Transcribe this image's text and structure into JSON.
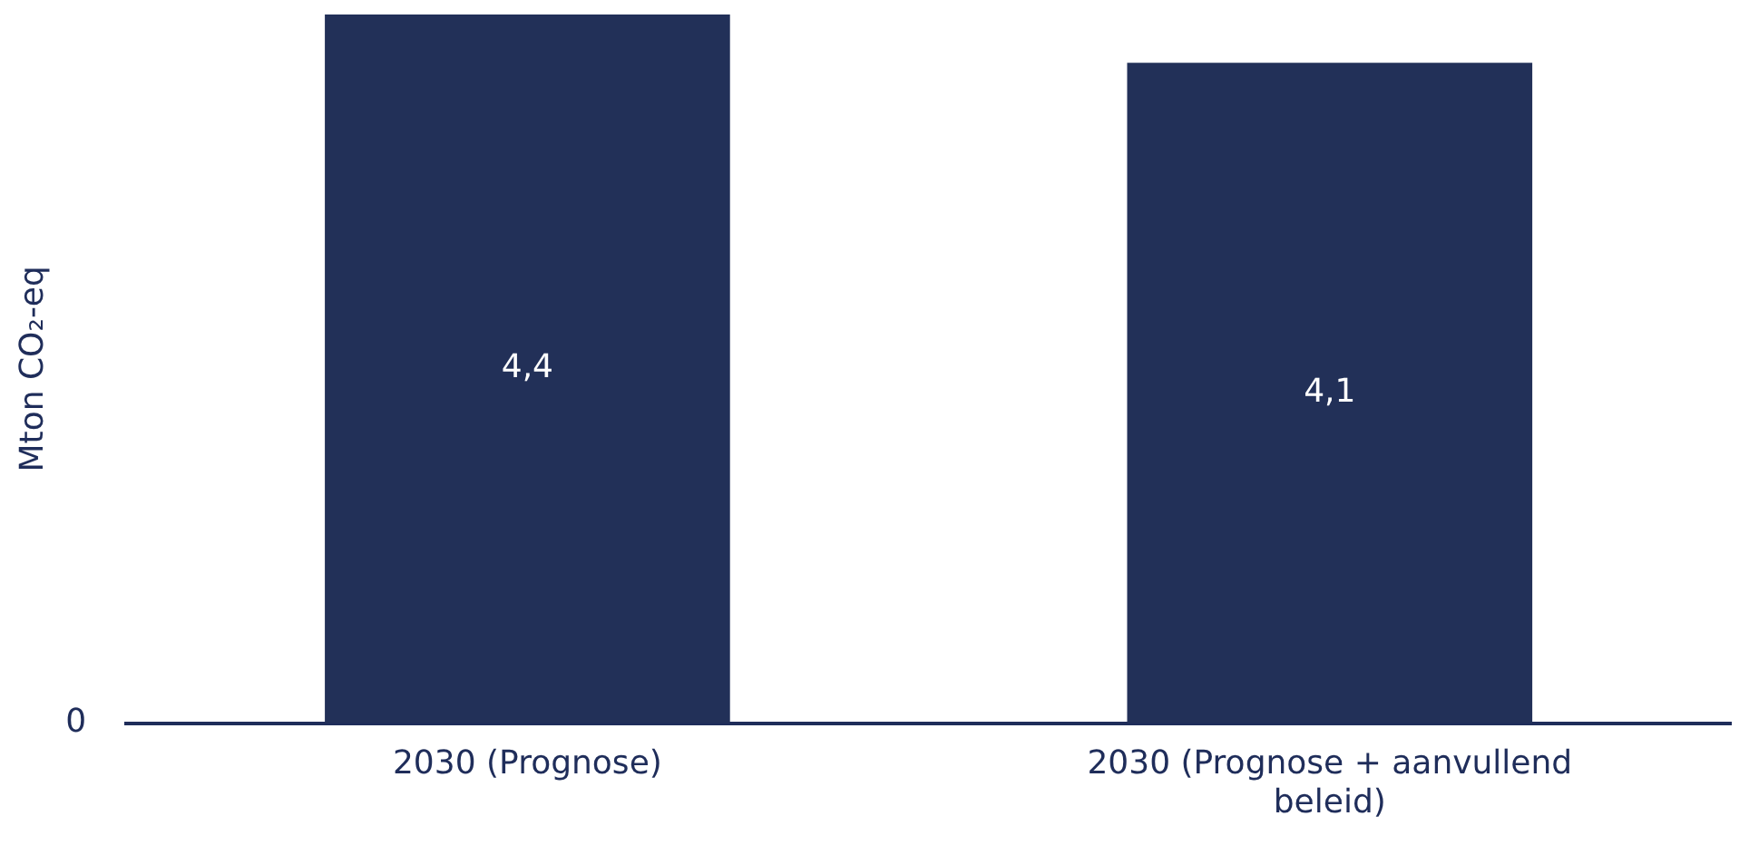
{
  "chart_data": {
    "type": "bar",
    "ylabel": "Mton CO₂-eq",
    "categories": [
      "2030 (Prognose)",
      "2030 (Prognose + aanvullend beleid)"
    ],
    "values": [
      4.4,
      4.1
    ],
    "value_labels": [
      "4,4",
      "4,1"
    ],
    "color": "#223058",
    "annotations": [
      "0"
    ],
    "grid": false,
    "legend": false
  }
}
